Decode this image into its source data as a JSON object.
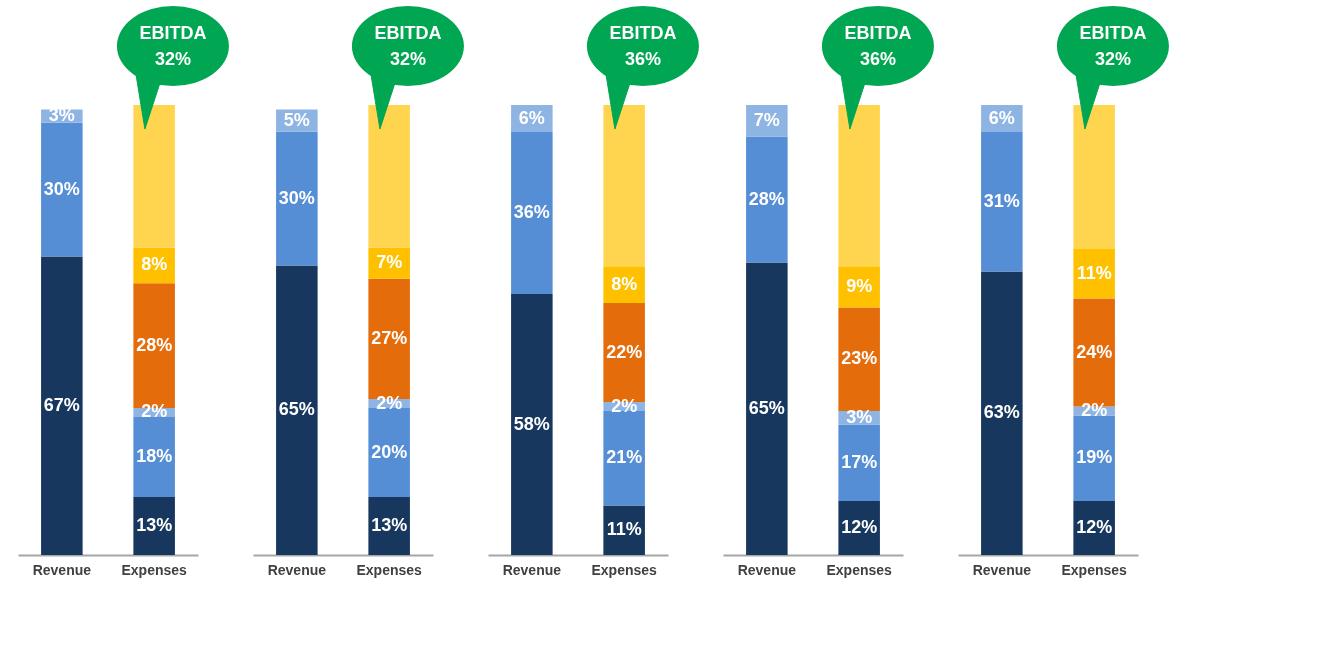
{
  "chart_data": [
    {
      "type": "bar",
      "stacked": true,
      "categories": [
        "Revenue",
        "Expenses"
      ],
      "tick_labels": "x",
      "annotations": [
        {
          "text": "EBITDA 32%",
          "x": "Expenses",
          "y": 101
        }
      ],
      "series": [
        {
          "color": "#17375e",
          "values": [
            67,
            13
          ],
          "value_labels": [
            "67%",
            "13%"
          ]
        },
        {
          "color": "#558ed5",
          "values": [
            30,
            18
          ],
          "value_labels": [
            "30%",
            "18%"
          ]
        },
        {
          "color": "#8eb4e3",
          "values": [
            3,
            2
          ],
          "value_labels": [
            "3%",
            "2%"
          ]
        },
        {
          "color": "#e46c0a",
          "values": [
            null,
            28
          ],
          "value_labels": [
            null,
            "28%"
          ]
        },
        {
          "color": "#ffc000",
          "values": [
            null,
            8
          ],
          "value_labels": [
            null,
            "8%"
          ]
        },
        {
          "color": "#ffd54f",
          "values": [
            null,
            32
          ],
          "value_labels": [
            null,
            null
          ]
        }
      ]
    },
    {
      "type": "bar",
      "stacked": true,
      "categories": [
        "Revenue",
        "Expenses"
      ],
      "tick_labels": "x",
      "annotations": [
        {
          "text": "EBITDA 32%",
          "x": "Expenses",
          "y": 101
        }
      ],
      "series": [
        {
          "color": "#17375e",
          "values": [
            65,
            13
          ],
          "value_labels": [
            "65%",
            "13%"
          ]
        },
        {
          "color": "#558ed5",
          "values": [
            30,
            20
          ],
          "value_labels": [
            "30%",
            "20%"
          ]
        },
        {
          "color": "#8eb4e3",
          "values": [
            5,
            2
          ],
          "value_labels": [
            "5%",
            "2%"
          ]
        },
        {
          "color": "#e46c0a",
          "values": [
            null,
            27
          ],
          "value_labels": [
            null,
            "27%"
          ]
        },
        {
          "color": "#ffc000",
          "values": [
            null,
            7
          ],
          "value_labels": [
            null,
            "7%"
          ]
        },
        {
          "color": "#ffd54f",
          "values": [
            null,
            32
          ],
          "value_labels": [
            null,
            null
          ]
        }
      ]
    },
    {
      "type": "bar",
      "stacked": true,
      "categories": [
        "Revenue",
        "Expenses"
      ],
      "tick_labels": "x",
      "annotations": [
        {
          "text": "EBITDA 36%",
          "x": "Expenses",
          "y": 100
        }
      ],
      "series": [
        {
          "color": "#17375e",
          "values": [
            58,
            11
          ],
          "value_labels": [
            "58%",
            "11%"
          ]
        },
        {
          "color": "#558ed5",
          "values": [
            36,
            21
          ],
          "value_labels": [
            "36%",
            "21%"
          ]
        },
        {
          "color": "#8eb4e3",
          "values": [
            6,
            2
          ],
          "value_labels": [
            "6%",
            "2%"
          ]
        },
        {
          "color": "#e46c0a",
          "values": [
            null,
            22
          ],
          "value_labels": [
            null,
            "22%"
          ]
        },
        {
          "color": "#ffc000",
          "values": [
            null,
            8
          ],
          "value_labels": [
            null,
            "8%"
          ]
        },
        {
          "color": "#ffd54f",
          "values": [
            null,
            36
          ],
          "value_labels": [
            null,
            null
          ]
        }
      ]
    },
    {
      "type": "bar",
      "stacked": true,
      "categories": [
        "Revenue",
        "Expenses"
      ],
      "tick_labels": "x",
      "annotations": [
        {
          "text": "EBITDA 36%",
          "x": "Expenses",
          "y": 100
        }
      ],
      "series": [
        {
          "color": "#17375e",
          "values": [
            65,
            12
          ],
          "value_labels": [
            "65%",
            "12%"
          ]
        },
        {
          "color": "#558ed5",
          "values": [
            28,
            17
          ],
          "value_labels": [
            "28%",
            "17%"
          ]
        },
        {
          "color": "#8eb4e3",
          "values": [
            7,
            3
          ],
          "value_labels": [
            "7%",
            "3%"
          ]
        },
        {
          "color": "#e46c0a",
          "values": [
            null,
            23
          ],
          "value_labels": [
            null,
            "23%"
          ]
        },
        {
          "color": "#ffc000",
          "values": [
            null,
            9
          ],
          "value_labels": [
            null,
            "9%"
          ]
        },
        {
          "color": "#ffd54f",
          "values": [
            null,
            36
          ],
          "value_labels": [
            null,
            null
          ]
        }
      ]
    },
    {
      "type": "bar",
      "stacked": true,
      "categories": [
        "Revenue",
        "Expenses"
      ],
      "tick_labels": "x",
      "annotations": [
        {
          "text": "EBITDA 32%",
          "x": "Expenses",
          "y": 100
        }
      ],
      "series": [
        {
          "color": "#17375e",
          "values": [
            63,
            12
          ],
          "value_labels": [
            "63%",
            "12%"
          ]
        },
        {
          "color": "#558ed5",
          "values": [
            31,
            19
          ],
          "value_labels": [
            "31%",
            "19%"
          ]
        },
        {
          "color": "#8eb4e3",
          "values": [
            6,
            2
          ],
          "value_labels": [
            "6%",
            "2%"
          ]
        },
        {
          "color": "#e46c0a",
          "values": [
            null,
            24
          ],
          "value_labels": [
            null,
            "24%"
          ]
        },
        {
          "color": "#ffc000",
          "values": [
            null,
            11
          ],
          "value_labels": [
            null,
            "11%"
          ]
        },
        {
          "color": "#ffd54f",
          "values": [
            null,
            32
          ],
          "value_labels": [
            null,
            null
          ]
        }
      ]
    }
  ]
}
